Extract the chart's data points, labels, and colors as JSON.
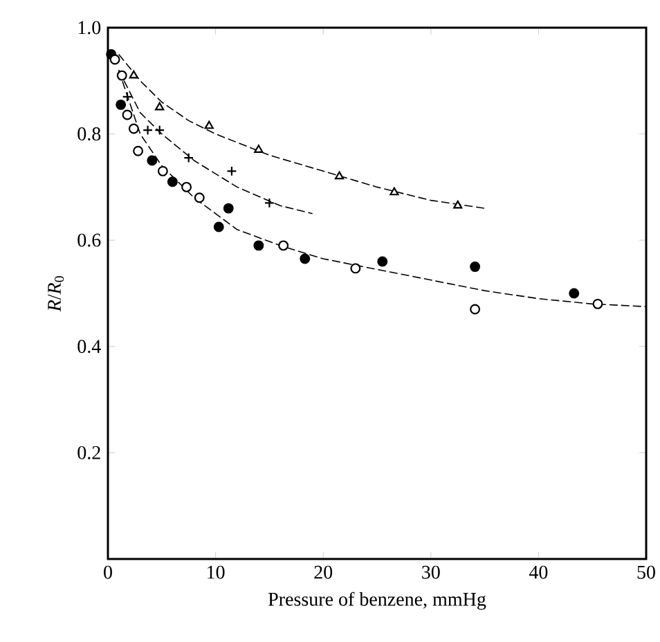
{
  "chart_data": {
    "type": "scatter",
    "xlabel": "Pressure of benzene, mmHg",
    "ylabel": "*R*/*R*$_{0}$",
    "xlim": [
      0,
      50
    ],
    "ylim": [
      0,
      1.0
    ],
    "xticks": [
      0,
      10,
      20,
      30,
      40,
      50
    ],
    "yticks": [
      {
        "value": 0,
        "label": null
      },
      0.2,
      0.4,
      0.6,
      0.8,
      {
        "value": 1.0,
        "label": "1.0"
      }
    ],
    "series": [
      {
        "marker": "triangle",
        "color": "#ffffff",
        "x": [
          2.4,
          4.8,
          9.4,
          14.0,
          21.5,
          26.6,
          32.5
        ],
        "values": [
          0.91,
          0.85,
          0.815,
          0.77,
          0.72,
          0.69,
          0.665
        ]
      },
      {
        "marker": "cross",
        "color": "#000000",
        "x": [
          1.8,
          3.7,
          4.8,
          7.5,
          11.5,
          15.0
        ],
        "values": [
          0.87,
          0.807,
          0.807,
          0.755,
          0.73,
          0.67
        ]
      },
      {
        "marker": "circle",
        "color": "#000000",
        "x": [
          0.3,
          1.2,
          4.1,
          6.0,
          10.3,
          11.2,
          14.0,
          18.3,
          25.5,
          34.1,
          43.3
        ],
        "values": [
          0.95,
          0.855,
          0.75,
          0.71,
          0.625,
          0.66,
          0.59,
          0.565,
          0.56,
          0.55,
          0.5
        ]
      },
      {
        "marker": "circle",
        "color": "#ffffff",
        "x": [
          0.65,
          1.3,
          1.8,
          2.4,
          2.8,
          5.1,
          7.3,
          8.5,
          16.3,
          23.0,
          34.1,
          45.5
        ],
        "values": [
          0.94,
          0.91,
          0.836,
          0.81,
          0.768,
          0.73,
          0.7,
          0.68,
          0.59,
          0.547,
          0.47,
          0.48
        ]
      },
      {
        "type": "line",
        "marker": "none",
        "line_style": "dashed",
        "color": "#000000",
        "x": [
          1,
          3,
          5,
          7.5,
          10,
          15,
          20,
          25,
          30,
          35
        ],
        "values": [
          0.95,
          0.9,
          0.86,
          0.825,
          0.8,
          0.76,
          0.73,
          0.7,
          0.675,
          0.66
        ]
      },
      {
        "type": "line",
        "marker": "none",
        "line_style": "dashed",
        "color": "#000000",
        "x": [
          1,
          3,
          5,
          8,
          12,
          16,
          19
        ],
        "values": [
          0.92,
          0.84,
          0.8,
          0.75,
          0.7,
          0.665,
          0.65
        ]
      },
      {
        "type": "line",
        "marker": "none",
        "line_style": "dashed",
        "color": "#000000",
        "x": [
          1,
          3,
          5,
          8,
          12,
          16,
          20,
          25,
          30,
          35,
          40,
          45,
          50
        ],
        "values": [
          0.92,
          0.8,
          0.74,
          0.68,
          0.62,
          0.59,
          0.565,
          0.545,
          0.525,
          0.505,
          0.49,
          0.48,
          0.475
        ]
      }
    ]
  }
}
